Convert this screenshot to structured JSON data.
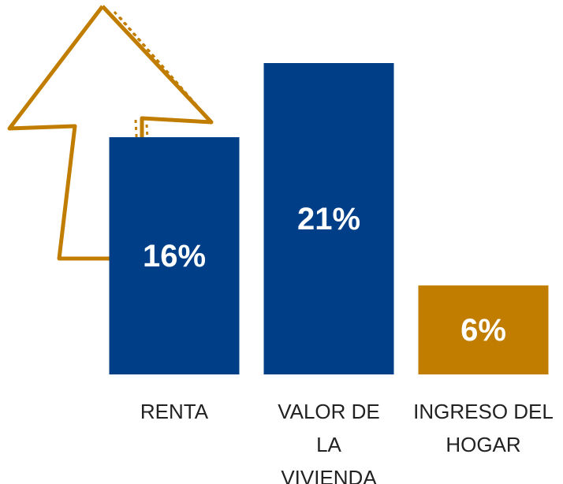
{
  "chart_data": {
    "type": "bar",
    "categories": [
      [
        "RENTA"
      ],
      [
        "VALOR DE",
        "LA",
        "VIVIENDA"
      ],
      [
        "INGRESO DEL",
        "HOGAR"
      ]
    ],
    "values": [
      16,
      21,
      6
    ],
    "value_labels": [
      "16%",
      "21%",
      "6%"
    ],
    "colors": [
      "#003f87",
      "#003f87",
      "#c17d00"
    ]
  }
}
